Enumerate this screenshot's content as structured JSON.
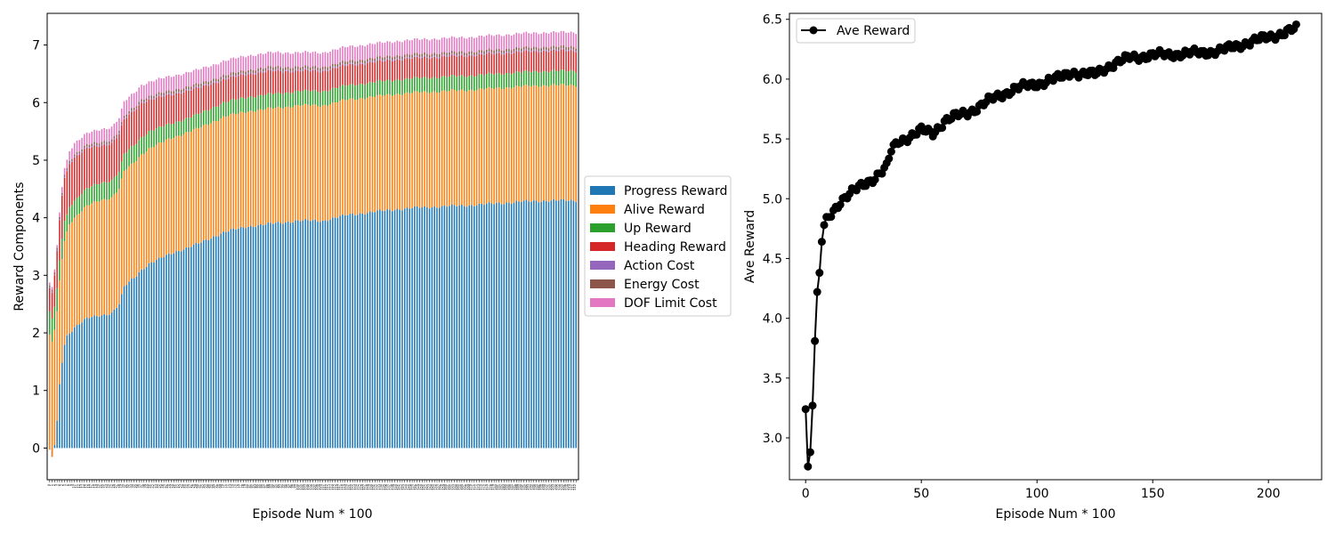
{
  "chart_data": [
    {
      "type": "bar",
      "stacked": true,
      "xlabel": "Episode Num * 100",
      "ylabel": "Reward Components",
      "ylim": [
        -0.55,
        7.55
      ],
      "yticks": [
        0,
        1,
        2,
        3,
        4,
        5,
        6,
        7
      ],
      "category_count": 213,
      "category_range": [
        0,
        212
      ],
      "legend_position": "outside-right",
      "grid": false,
      "series": [
        {
          "name": "Progress Reward",
          "color": "#1f77b4"
        },
        {
          "name": "Alive Reward",
          "color": "#ff7f0e"
        },
        {
          "name": "Up Reward",
          "color": "#2ca02c"
        },
        {
          "name": "Heading Reward",
          "color": "#d62728"
        },
        {
          "name": "Action Cost",
          "color": "#9467bd"
        },
        {
          "name": "Energy Cost",
          "color": "#8c564b"
        },
        {
          "name": "DOF Limit Cost",
          "color": "#e377c2"
        }
      ],
      "profile_points": {
        "episode": [
          0,
          1,
          2,
          3,
          4,
          5,
          6,
          7,
          8,
          10,
          15,
          20,
          25,
          28,
          30,
          35,
          37,
          40,
          50,
          60,
          70,
          80,
          90,
          100,
          110,
          120,
          130,
          140,
          150,
          160,
          170,
          180,
          190,
          200,
          212
        ],
        "progress": [
          -0.05,
          -0.15,
          0.05,
          0.45,
          1.1,
          1.5,
          1.8,
          1.95,
          2.0,
          2.1,
          2.25,
          2.3,
          2.35,
          2.5,
          2.8,
          3.0,
          3.1,
          3.2,
          3.4,
          3.55,
          3.75,
          3.85,
          3.9,
          3.95,
          3.95,
          4.05,
          4.1,
          4.15,
          4.18,
          4.2,
          4.22,
          4.25,
          4.28,
          4.3,
          4.3
        ],
        "alive": [
          2.0,
          2.0,
          2.0,
          1.9,
          1.8,
          1.8,
          1.8,
          1.8,
          1.9,
          1.9,
          1.95,
          2.0,
          2.0,
          2.0,
          2.0,
          2.0,
          2.0,
          2.0,
          2.0,
          2.0,
          2.0,
          2.0,
          2.0,
          2.0,
          2.0,
          2.0,
          2.0,
          2.0,
          2.0,
          2.0,
          2.0,
          2.0,
          2.0,
          2.0,
          2.0
        ],
        "up": [
          0.4,
          0.4,
          0.4,
          0.4,
          0.35,
          0.35,
          0.35,
          0.3,
          0.3,
          0.3,
          0.3,
          0.3,
          0.3,
          0.3,
          0.3,
          0.3,
          0.3,
          0.3,
          0.25,
          0.25,
          0.25,
          0.25,
          0.25,
          0.25,
          0.25,
          0.25,
          0.25,
          0.25,
          0.25,
          0.25,
          0.25,
          0.25,
          0.25,
          0.25,
          0.25
        ],
        "heading": [
          0.4,
          0.45,
          0.55,
          0.65,
          0.7,
          0.75,
          0.75,
          0.75,
          0.75,
          0.75,
          0.7,
          0.65,
          0.65,
          0.65,
          0.6,
          0.6,
          0.6,
          0.55,
          0.5,
          0.45,
          0.4,
          0.4,
          0.4,
          0.35,
          0.35,
          0.35,
          0.35,
          0.35,
          0.35,
          0.35,
          0.35,
          0.35,
          0.35,
          0.35,
          0.35
        ],
        "action": [
          0.02,
          0.02,
          0.02,
          0.02,
          0.02,
          0.02,
          0.02,
          0.02,
          0.02,
          0.02,
          0.02,
          0.02,
          0.02,
          0.02,
          0.02,
          0.02,
          0.02,
          0.02,
          0.02,
          0.02,
          0.02,
          0.02,
          0.02,
          0.02,
          0.02,
          0.02,
          0.02,
          0.02,
          0.02,
          0.02,
          0.02,
          0.02,
          0.02,
          0.02,
          0.02
        ],
        "energy": [
          0.03,
          0.03,
          0.03,
          0.03,
          0.03,
          0.03,
          0.03,
          0.03,
          0.03,
          0.03,
          0.04,
          0.04,
          0.04,
          0.04,
          0.04,
          0.04,
          0.04,
          0.04,
          0.05,
          0.05,
          0.05,
          0.05,
          0.05,
          0.05,
          0.05,
          0.05,
          0.05,
          0.05,
          0.05,
          0.05,
          0.05,
          0.05,
          0.05,
          0.05,
          0.05
        ],
        "dof": [
          0.05,
          0.05,
          0.05,
          0.05,
          0.08,
          0.1,
          0.12,
          0.15,
          0.17,
          0.2,
          0.2,
          0.22,
          0.22,
          0.22,
          0.25,
          0.25,
          0.25,
          0.25,
          0.25,
          0.25,
          0.25,
          0.25,
          0.25,
          0.25,
          0.25,
          0.25,
          0.25,
          0.25,
          0.25,
          0.25,
          0.25,
          0.25,
          0.25,
          0.25,
          0.25
        ]
      }
    },
    {
      "type": "line",
      "xlabel": "Episode Num * 100",
      "ylabel": "Ave Reward",
      "xlim": [
        -7,
        223
      ],
      "ylim": [
        2.65,
        6.55
      ],
      "xticks": [
        0,
        50,
        100,
        150,
        200
      ],
      "yticks": [
        3.0,
        3.5,
        4.0,
        4.5,
        5.0,
        5.5,
        6.0,
        6.5
      ],
      "legend_position": "top-left",
      "grid": false,
      "series": [
        {
          "name": "Ave Reward",
          "color": "#000000",
          "marker": "circle"
        }
      ],
      "profile_points": {
        "x": [
          0,
          1,
          2,
          3,
          4,
          5,
          6,
          7,
          8,
          10,
          15,
          20,
          25,
          30,
          35,
          37,
          40,
          45,
          50,
          55,
          60,
          65,
          70,
          75,
          80,
          85,
          90,
          95,
          100,
          105,
          110,
          115,
          120,
          125,
          130,
          135,
          140,
          145,
          150,
          160,
          170,
          180,
          190,
          200,
          212
        ],
        "y": [
          3.24,
          2.76,
          2.88,
          3.27,
          3.81,
          4.22,
          4.38,
          4.64,
          4.78,
          4.85,
          4.98,
          5.05,
          5.12,
          5.18,
          5.26,
          5.4,
          5.48,
          5.52,
          5.57,
          5.55,
          5.65,
          5.69,
          5.72,
          5.77,
          5.83,
          5.87,
          5.92,
          5.94,
          5.96,
          5.99,
          6.01,
          6.06,
          6.04,
          6.04,
          6.1,
          6.14,
          6.18,
          6.19,
          6.2,
          6.21,
          6.22,
          6.24,
          6.3,
          6.35,
          6.42
        ]
      }
    }
  ]
}
